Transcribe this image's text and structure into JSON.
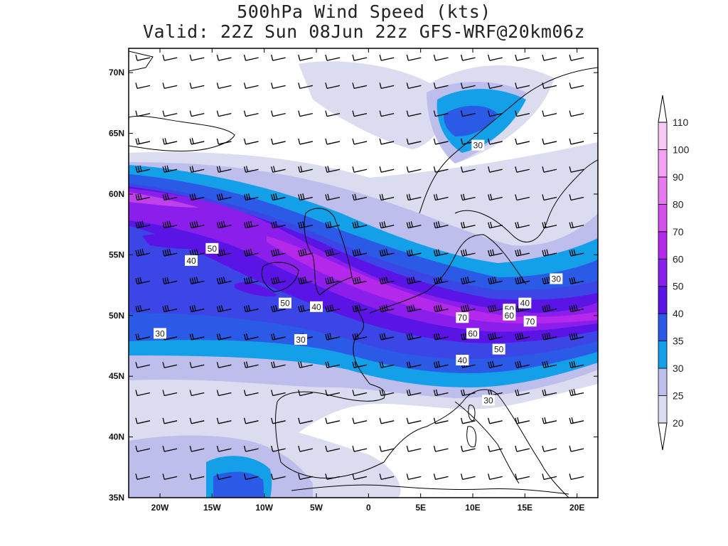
{
  "title": "500hPa Wind Speed (kts)",
  "subtitle": "Valid: 22Z Sun 08Jun 22z GFS-WRF@20km06z",
  "map": {
    "lon_range": [
      -23,
      22
    ],
    "lat_range": [
      35,
      72
    ],
    "lat_ticks": [
      {
        "value": 70,
        "label": "70N"
      },
      {
        "value": 65,
        "label": "65N"
      },
      {
        "value": 60,
        "label": "60N"
      },
      {
        "value": 55,
        "label": "55N"
      },
      {
        "value": 50,
        "label": "50N"
      },
      {
        "value": 45,
        "label": "45N"
      },
      {
        "value": 40,
        "label": "40N"
      },
      {
        "value": 35,
        "label": "35N"
      }
    ],
    "lon_ticks": [
      {
        "value": -20,
        "label": "20W"
      },
      {
        "value": -15,
        "label": "15W"
      },
      {
        "value": -10,
        "label": "10W"
      },
      {
        "value": -5,
        "label": "5W"
      },
      {
        "value": 0,
        "label": "0"
      },
      {
        "value": 5,
        "label": "5E"
      },
      {
        "value": 10,
        "label": "10E"
      },
      {
        "value": 15,
        "label": "15E"
      },
      {
        "value": 20,
        "label": "20E"
      }
    ],
    "contour_labels": [
      {
        "text": "50",
        "lon": -15.0,
        "lat": 55.5
      },
      {
        "text": "40",
        "lon": -17.0,
        "lat": 54.5
      },
      {
        "text": "30",
        "lon": -20.0,
        "lat": 48.5
      },
      {
        "text": "50",
        "lon": -8.0,
        "lat": 51.0
      },
      {
        "text": "40",
        "lon": -5.0,
        "lat": 50.7
      },
      {
        "text": "30",
        "lon": -6.5,
        "lat": 48.0
      },
      {
        "text": "30",
        "lon": 10.5,
        "lat": 64.0
      },
      {
        "text": "30",
        "lon": 18.0,
        "lat": 53.0
      },
      {
        "text": "40",
        "lon": 15.0,
        "lat": 51.0
      },
      {
        "text": "50",
        "lon": 13.5,
        "lat": 50.5
      },
      {
        "text": "60",
        "lon": 13.5,
        "lat": 50.0
      },
      {
        "text": "70",
        "lon": 15.5,
        "lat": 49.5
      },
      {
        "text": "70",
        "lon": 9.0,
        "lat": 49.8
      },
      {
        "text": "60",
        "lon": 10.0,
        "lat": 48.5
      },
      {
        "text": "50",
        "lon": 12.5,
        "lat": 47.2
      },
      {
        "text": "40",
        "lon": 9.0,
        "lat": 46.3
      },
      {
        "text": "30",
        "lon": 11.5,
        "lat": 43.0
      }
    ]
  },
  "colorbar": {
    "levels": [
      "20",
      "25",
      "30",
      "35",
      "40",
      "50",
      "60",
      "70",
      "80",
      "90",
      "100",
      "110"
    ],
    "colors": [
      "#dcdcf0",
      "#bebeec",
      "#14a0e8",
      "#2a5ae6",
      "#5a14e6",
      "#8c1eeb",
      "#b428eb",
      "#d250eb",
      "#e878f0",
      "#f4a0f4",
      "#f8c8f8"
    ]
  },
  "colors": {
    "c20": "#dcdcf0",
    "c25": "#bebeec",
    "c30": "#14a0e8",
    "c35": "#2a5ae6",
    "c40": "#3c46e6",
    "c50": "#5a14e6",
    "c60": "#8c1eeb",
    "c70": "#b428eb"
  }
}
